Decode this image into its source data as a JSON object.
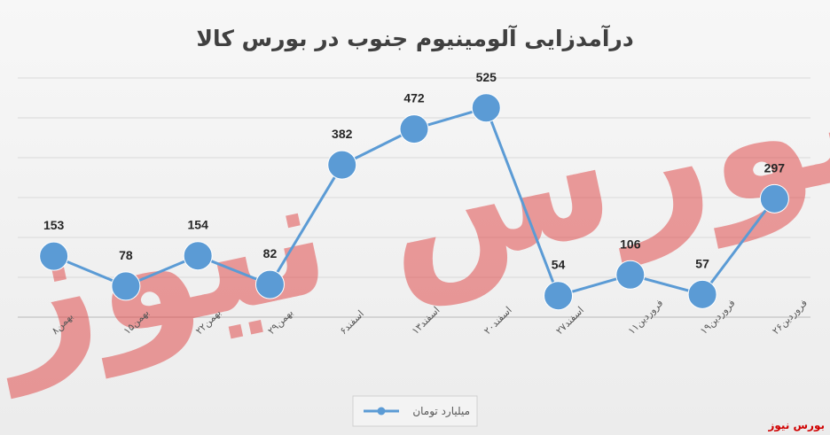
{
  "chart_data": {
    "type": "line",
    "title": "درآمدزایی آلومینیوم جنوب در بورس کالا",
    "categories": [
      "۸بهمن",
      "۱۵بهمن",
      "۲۲بهمن",
      "۲۹بهمن",
      "۶اسفند",
      "۱۳اسفند",
      "۲۰اسفند",
      "۲۷اسفند",
      "۱۱فروردین",
      "۱۹فروردین",
      "۲۶فروردین"
    ],
    "series": [
      {
        "name": "میلیارد تومان",
        "values": [
          153,
          78,
          154,
          82,
          382,
          472,
          525,
          54,
          106,
          57,
          297
        ],
        "color": "#5b9bd5"
      }
    ],
    "ylim": [
      0,
      600
    ],
    "grid": true,
    "legend_position": "bottom",
    "watermark_text": "بورس نیوز",
    "source_label": "بورس نیوز"
  }
}
